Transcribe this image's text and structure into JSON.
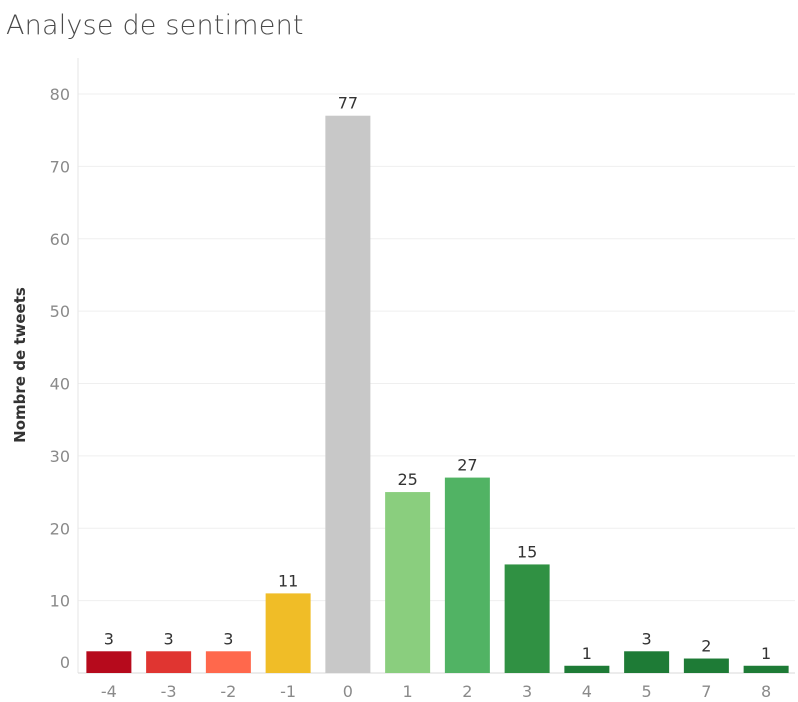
{
  "chart_data": {
    "type": "bar",
    "title": "Analyse de sentiment",
    "xlabel": "",
    "ylabel": "Nombre de tweets",
    "ylim": [
      0,
      85
    ],
    "yticks": [
      0,
      10,
      20,
      30,
      40,
      50,
      60,
      70,
      80
    ],
    "grid": true,
    "categories": [
      "-4",
      "-3",
      "-2",
      "-1",
      "0",
      "1",
      "2",
      "3",
      "4",
      "5",
      "7",
      "8"
    ],
    "values": [
      3,
      3,
      3,
      11,
      77,
      25,
      27,
      15,
      1,
      3,
      2,
      1
    ],
    "colors": [
      "#b60a1c",
      "#e03531",
      "#ff684c",
      "#f0bd27",
      "#c8c8c8",
      "#8ace7e",
      "#51b364",
      "#309143",
      "#1e7b36",
      "#1e7b36",
      "#1e7b36",
      "#1e7b36"
    ]
  }
}
